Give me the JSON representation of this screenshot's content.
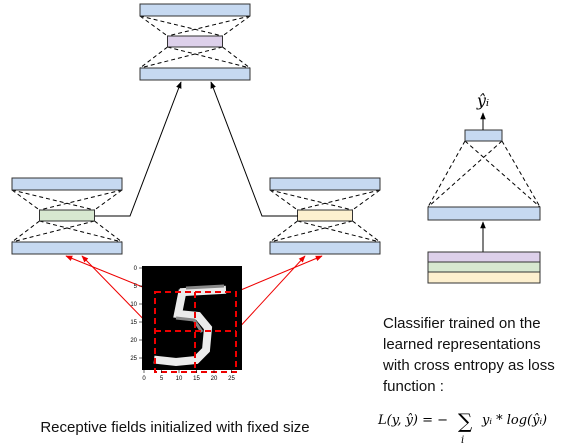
{
  "classifier_output_label": "ŷᵢ",
  "classifier_caption": [
    "Classifier trained on the",
    "learned representations",
    "with cross entropy as loss",
    "function :"
  ],
  "receptive_caption": "Receptive fields initialized with fixed size",
  "formula": {
    "lhs": "L(y, ŷ) = −",
    "sum": "∑",
    "index": "i",
    "rhs": "yᵢ * log(ŷᵢ)"
  },
  "image_axes": {
    "xticks": [
      "0",
      "5",
      "10",
      "15",
      "20",
      "25"
    ],
    "yticks": [
      "0",
      "5",
      "10",
      "15",
      "20",
      "25"
    ]
  }
}
